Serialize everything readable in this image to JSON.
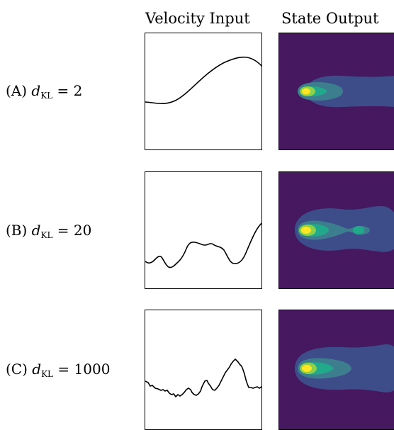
{
  "columns": {
    "velocity_header": "Velocity Input",
    "state_header": "State Output"
  },
  "rows": [
    {
      "tag": "(A)",
      "var": "d",
      "subscript": "KL",
      "equals": "=",
      "value": "2"
    },
    {
      "tag": "(B)",
      "var": "d",
      "subscript": "KL",
      "equals": "=",
      "value": "20"
    },
    {
      "tag": "(C)",
      "var": "d",
      "subscript": "KL",
      "equals": "=",
      "value": "1000"
    }
  ],
  "colors": {
    "field_background": "#45185f",
    "contour_1": "#3d4d8a",
    "contour_2": "#3c7e8e",
    "contour_3": "#22a88a",
    "contour_4": "#8cd14a",
    "contour_5": "#fde725"
  }
}
